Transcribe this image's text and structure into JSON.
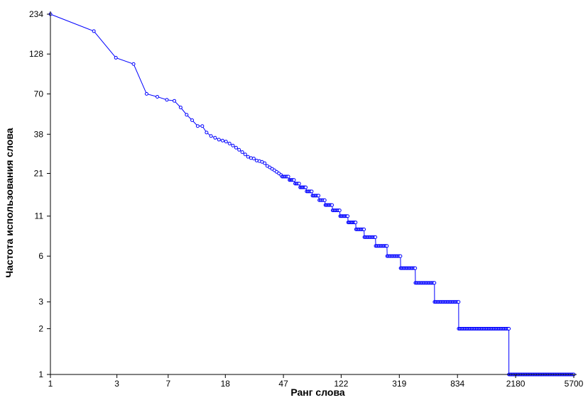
{
  "chart_data": {
    "type": "line",
    "title": "",
    "xlabel": "Ранг слова",
    "ylabel": "Частота использования слова",
    "xscale": "log",
    "yscale": "log",
    "xlim": [
      1,
      5700
    ],
    "ylim": [
      1,
      234
    ],
    "xticks": [
      1,
      3,
      7,
      18,
      47,
      122,
      319,
      834,
      2180,
      5700
    ],
    "xtick_labels": [
      "1",
      "3",
      "7",
      "18",
      "47",
      "122",
      "319",
      "834",
      "2180",
      "5700"
    ],
    "yticks": [
      1,
      2,
      3,
      6,
      11,
      21,
      38,
      70,
      128,
      234
    ],
    "ytick_labels": [
      "1",
      "2",
      "3",
      "6",
      "11",
      "21",
      "38",
      "70",
      "128",
      "234"
    ],
    "grid": false,
    "legend": "none",
    "colors": {
      "series": "#0000ff",
      "axis": "#000000",
      "background": "#ffffff"
    },
    "marker": "open-circle",
    "series": [
      {
        "explicit_points": [
          [
            1,
            234
          ],
          [
            2.05,
            181
          ],
          [
            2.95,
            121
          ],
          [
            3.95,
            110
          ],
          [
            4.9,
            70
          ],
          [
            5.85,
            67
          ],
          [
            6.85,
            64
          ],
          [
            7.75,
            63
          ],
          [
            8.6,
            57
          ],
          [
            9.5,
            51
          ],
          [
            10.4,
            47
          ],
          [
            11.4,
            43
          ],
          [
            12.3,
            43
          ],
          [
            13.2,
            39
          ],
          [
            14.2,
            37
          ],
          [
            15.2,
            36
          ],
          [
            16.2,
            35
          ],
          [
            17.2,
            34.5
          ],
          [
            18.2,
            34
          ],
          [
            19.3,
            33
          ],
          [
            20.4,
            32
          ],
          [
            21.5,
            31
          ],
          [
            22.6,
            30
          ],
          [
            23.8,
            29
          ],
          [
            25,
            28
          ],
          [
            26.2,
            27
          ],
          [
            27.5,
            26.5
          ],
          [
            28.8,
            26.3
          ],
          [
            30.2,
            25.5
          ],
          [
            31.6,
            25.3
          ],
          [
            33,
            25
          ],
          [
            34.5,
            24.5
          ],
          [
            36,
            23.5
          ],
          [
            37.5,
            23
          ],
          [
            39,
            22.5
          ],
          [
            40.5,
            22
          ],
          [
            42,
            21.5
          ],
          [
            43.6,
            21
          ],
          [
            45.2,
            20.5
          ]
        ],
        "steps": [
          {
            "value": 20,
            "from": 46,
            "to": 51
          },
          {
            "value": 19,
            "from": 52,
            "to": 56
          },
          {
            "value": 18,
            "from": 57,
            "to": 61
          },
          {
            "value": 17,
            "from": 62,
            "to": 68
          },
          {
            "value": 16,
            "from": 69,
            "to": 75
          },
          {
            "value": 15,
            "from": 76,
            "to": 84
          },
          {
            "value": 14,
            "from": 85,
            "to": 93
          },
          {
            "value": 13,
            "from": 94,
            "to": 105
          },
          {
            "value": 12,
            "from": 106,
            "to": 119
          },
          {
            "value": 11,
            "from": 120,
            "to": 136
          },
          {
            "value": 10,
            "from": 137,
            "to": 155
          },
          {
            "value": 9,
            "from": 156,
            "to": 178
          },
          {
            "value": 8,
            "from": 179,
            "to": 215
          },
          {
            "value": 7,
            "from": 216,
            "to": 260
          },
          {
            "value": 6,
            "from": 261,
            "to": 325
          },
          {
            "value": 5,
            "from": 326,
            "to": 415
          },
          {
            "value": 4,
            "from": 416,
            "to": 570
          },
          {
            "value": 3,
            "from": 571,
            "to": 850
          },
          {
            "value": 2,
            "from": 851,
            "to": 1950
          },
          {
            "value": 1,
            "from": 1951,
            "to": 5700
          }
        ]
      }
    ]
  }
}
